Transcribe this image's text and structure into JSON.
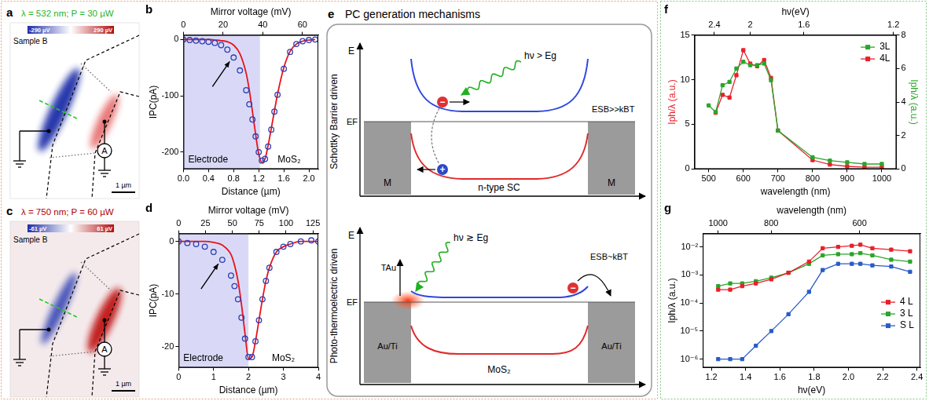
{
  "chart_data": [
    {
      "panel": "b",
      "type": "line",
      "x_label": "Distance (µm)",
      "x2_label": "Mirror voltage (mV)",
      "y_label": "IPC(pA)",
      "x": [
        0,
        0.1,
        0.2,
        0.3,
        0.4,
        0.5,
        0.6,
        0.7,
        0.8,
        0.9,
        1.0,
        1.05,
        1.1,
        1.15,
        1.2,
        1.25,
        1.3,
        1.35,
        1.4,
        1.45,
        1.5,
        1.6,
        1.7,
        1.8,
        1.9,
        2.0,
        2.1
      ],
      "series": [
        {
          "color": "#2b3fb5",
          "marker": "circle",
          "line_style": "none",
          "values": [
            0,
            -1,
            -2,
            -3,
            -4,
            -6,
            -10,
            -18,
            -32,
            -55,
            -90,
            -115,
            -142,
            -172,
            -200,
            -215,
            -212,
            -190,
            -160,
            -128,
            -98,
            -52,
            -22,
            -8,
            -3,
            -1,
            0
          ]
        },
        {
          "color": "#e8131b",
          "marker": "none",
          "line_style": "smooth",
          "values": [
            0,
            0,
            0,
            0,
            0,
            -1,
            -2,
            -4,
            -10,
            -25,
            -60,
            -90,
            -128,
            -168,
            -203,
            -218,
            -212,
            -188,
            -158,
            -127,
            -97,
            -50,
            -21,
            -8,
            -3,
            -1,
            0
          ]
        }
      ],
      "xlim": [
        0,
        2.15
      ],
      "xticks": [
        {
          "value": 0,
          "label": "0.0"
        },
        0.4,
        0.8,
        1.2,
        1.6,
        {
          "value": 2,
          "label": "2.0"
        }
      ],
      "x2lim": [
        0,
        68
      ],
      "x2ticks": [
        0,
        20,
        40,
        60
      ],
      "ylim": [
        -230,
        8
      ],
      "yticks": [
        -200,
        -100,
        0
      ],
      "electrode_region": [
        0,
        1.22
      ],
      "annotations": [
        "Electrode",
        "MoS₂"
      ],
      "grid": false
    },
    {
      "panel": "d",
      "type": "line",
      "x_label": "Distance (µm)",
      "x2_label": "Mirror voltage (mV)",
      "y_label": "IPC(pA)",
      "x": [
        0,
        0.25,
        0.5,
        0.75,
        1.0,
        1.25,
        1.5,
        1.6,
        1.7,
        1.8,
        1.9,
        2.0,
        2.1,
        2.2,
        2.3,
        2.4,
        2.5,
        2.6,
        2.8,
        3.0,
        3.2,
        3.5,
        3.8,
        4.0
      ],
      "series": [
        {
          "color": "#2b3fb5",
          "marker": "circle",
          "line_style": "none",
          "values": [
            0,
            -0.3,
            -0.5,
            -1,
            -2,
            -3.5,
            -6.5,
            -8.5,
            -11,
            -14.5,
            -18.5,
            -22,
            -22,
            -19,
            -15,
            -11,
            -7.5,
            -5,
            -2,
            -1,
            -0.5,
            0,
            0.2,
            0
          ]
        },
        {
          "color": "#e8131b",
          "marker": "none",
          "line_style": "smooth",
          "values": [
            0,
            0,
            0,
            0,
            -0.2,
            -0.7,
            -2.5,
            -4.5,
            -7.5,
            -12,
            -17.5,
            -22.3,
            -22,
            -19,
            -15,
            -11,
            -7.5,
            -5,
            -2,
            -1,
            -0.5,
            0,
            0,
            0
          ]
        }
      ],
      "xlim": [
        0,
        4
      ],
      "xticks": [
        0,
        1,
        2,
        3,
        4
      ],
      "x2lim": [
        0,
        130
      ],
      "x2ticks": [
        0,
        25,
        50,
        75,
        100,
        125
      ],
      "ylim": [
        -24,
        1.5
      ],
      "yticks": [
        -20,
        -10,
        0
      ],
      "electrode_region": [
        0,
        2.0
      ],
      "annotations": [
        "Electrode",
        "MoS₂"
      ],
      "grid": false
    },
    {
      "panel": "f",
      "type": "line",
      "x_label": "wavelength (nm)",
      "x2_label": "hν(eV)",
      "y_label": "Iph/λ (a.u.)",
      "y2_label": "Iph/λ (a.u.)",
      "x": [
        500,
        520,
        540,
        560,
        580,
        600,
        620,
        640,
        660,
        680,
        700,
        800,
        850,
        900,
        950,
        1000
      ],
      "series": [
        {
          "name": "3L",
          "color": "#2aa52a",
          "axis": "y2",
          "marker": "square",
          "line_style": "solid",
          "values": [
            3.8,
            3.4,
            5.0,
            5.2,
            6.0,
            6.4,
            6.2,
            6.2,
            6.3,
            5.3,
            2.3,
            0.7,
            0.5,
            0.4,
            0.3,
            0.3
          ]
        },
        {
          "name": "4L",
          "color": "#e8202a",
          "marker": "square",
          "line_style": "solid",
          "values": [
            null,
            6.3,
            8.3,
            8.0,
            10.5,
            13.3,
            11.8,
            11.5,
            12.2,
            10.2,
            4.3,
            1.0,
            0.5,
            0.3,
            0.2,
            0.2
          ]
        }
      ],
      "xlim": [
        459,
        1042
      ],
      "xticks": [
        500,
        600,
        700,
        800,
        900,
        1000
      ],
      "x2lim": [
        2.7,
        1.19
      ],
      "x2ticks": [
        2.4,
        2,
        1.6,
        1.2
      ],
      "ylim": [
        0,
        15
      ],
      "yticks": [
        0,
        5,
        10,
        15
      ],
      "y2lim": [
        0,
        8
      ],
      "y2ticks": [
        0,
        2,
        4,
        6,
        8
      ],
      "legend": "upper right",
      "grid": false
    },
    {
      "panel": "g",
      "type": "line",
      "log": "y",
      "x_label": "hν(eV)",
      "x2_label": "wavelength (nm)",
      "y_label": "Iph/λ (a.u.)",
      "x": [
        1.24,
        1.31,
        1.38,
        1.46,
        1.55,
        1.65,
        1.77,
        1.85,
        1.94,
        2.02,
        2.07,
        2.14,
        2.25,
        2.36
      ],
      "series": [
        {
          "name": "4 L",
          "color": "#e8202a",
          "marker": "square",
          "line_style": "solid",
          "values": [
            0.0003,
            0.0003,
            0.0004,
            0.0005,
            0.0007,
            0.0012,
            0.003,
            0.009,
            0.01,
            0.011,
            0.012,
            0.009,
            0.008,
            0.007
          ]
        },
        {
          "name": "3 L",
          "color": "#2aa52a",
          "marker": "square",
          "line_style": "solid",
          "values": [
            0.0004,
            0.0005,
            0.0005,
            0.0006,
            0.0008,
            0.0012,
            0.0025,
            0.005,
            0.0055,
            0.0055,
            0.006,
            0.005,
            0.0035,
            0.003
          ]
        },
        {
          "name": "S L",
          "color": "#2a5bc8",
          "marker": "square",
          "line_style": "solid",
          "values": [
            1e-06,
            1e-06,
            1e-06,
            3e-06,
            1e-05,
            4e-05,
            0.00025,
            0.0015,
            0.0025,
            0.0025,
            0.0025,
            0.0022,
            0.002,
            0.0013
          ]
        }
      ],
      "xlim": [
        1.15,
        2.42
      ],
      "xticks": [
        1.2,
        1.4,
        1.6,
        1.8,
        {
          "value": 2,
          "label": "2.0"
        },
        2.2,
        2.4
      ],
      "x2lim": [
        1078,
        512
      ],
      "x2ticks": [
        1000,
        800,
        600
      ],
      "ylim": [
        5e-07,
        0.03
      ],
      "yticks": [
        {
          "value": 1e-06,
          "label": "10⁻⁶"
        },
        {
          "value": 1e-05,
          "label": "10⁻⁵"
        },
        {
          "value": 0.0001,
          "label": "10⁻⁴"
        },
        {
          "value": 0.001,
          "label": "10⁻³"
        },
        {
          "value": 0.01,
          "label": "10⁻²"
        }
      ],
      "legend": "right",
      "grid": false
    }
  ],
  "maps": [
    {
      "panel": "a",
      "title": "λ = 532 nm; P = 30 µW",
      "color": "#1fb51f",
      "sample": "Sample B",
      "colorbar": {
        "range": [
          -290,
          290
        ],
        "ticks": [
          {
            "value": -290,
            "label": "-290 µV"
          },
          {
            "value": 290,
            "label": "290 µV"
          }
        ]
      },
      "scale_bar": "1 µm",
      "meter": "A"
    },
    {
      "panel": "c",
      "title": "λ = 750 nm; P = 60 µW",
      "color": "#b00000",
      "sample": "Sample B",
      "colorbar": {
        "range": [
          -61,
          61
        ],
        "ticks": [
          {
            "value": -61,
            "label": "-61 µV"
          },
          {
            "value": 61,
            "label": "61 µV"
          }
        ]
      },
      "scale_bar": "1 µm",
      "meter": "A"
    }
  ],
  "diagram": {
    "panel": "e",
    "title": "PC generation mechanisms",
    "schottky": {
      "label": "Schottky Barrier driven",
      "energy": "E",
      "fermi": "EF",
      "photon": "hν > Eg",
      "barrier": "ESB>>kBT",
      "metal": "M",
      "semiconductor": "n-type SC",
      "electron": "−",
      "hole": "+"
    },
    "thermo": {
      "label": "Photo-thermoelectric driven",
      "energy": "E",
      "fermi": "EF",
      "photon": "hν ≳ Eg",
      "temperature": "TAu",
      "barrier": "ESB~kBT",
      "metal": "Au/Ti",
      "semiconductor": "MoS₂",
      "electron": "−"
    }
  }
}
